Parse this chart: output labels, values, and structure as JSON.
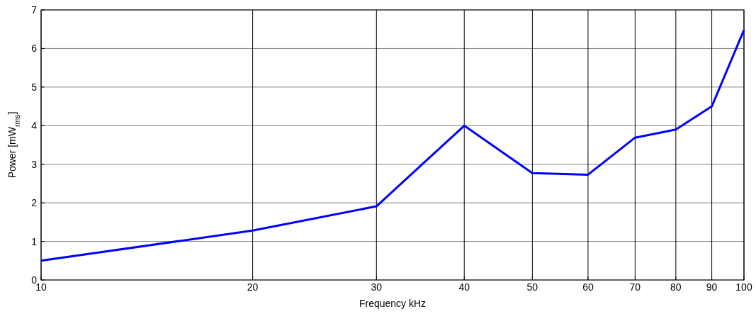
{
  "chart_data": {
    "type": "line",
    "xlabel": "Frequency kHz",
    "ylabel": "Power [mW$_{rms}$]",
    "x": [
      10,
      20,
      30,
      40,
      50,
      60,
      70,
      80,
      90,
      100
    ],
    "series": [
      {
        "color": "#0000ff",
        "values": [
          0.5,
          1.28,
          1.91,
          4.0,
          2.77,
          2.73,
          3.69,
          3.9,
          4.5,
          6.48
        ]
      }
    ],
    "xlim": [
      10,
      100
    ],
    "xticks": [
      10,
      20,
      30,
      40,
      50,
      60,
      70,
      80,
      90,
      100
    ],
    "ylim": [
      0,
      7
    ],
    "yticks": [
      0,
      1,
      2,
      3,
      4,
      5,
      6,
      7
    ],
    "log": "x",
    "grid": true,
    "marker": "none",
    "line_style": "solid"
  }
}
